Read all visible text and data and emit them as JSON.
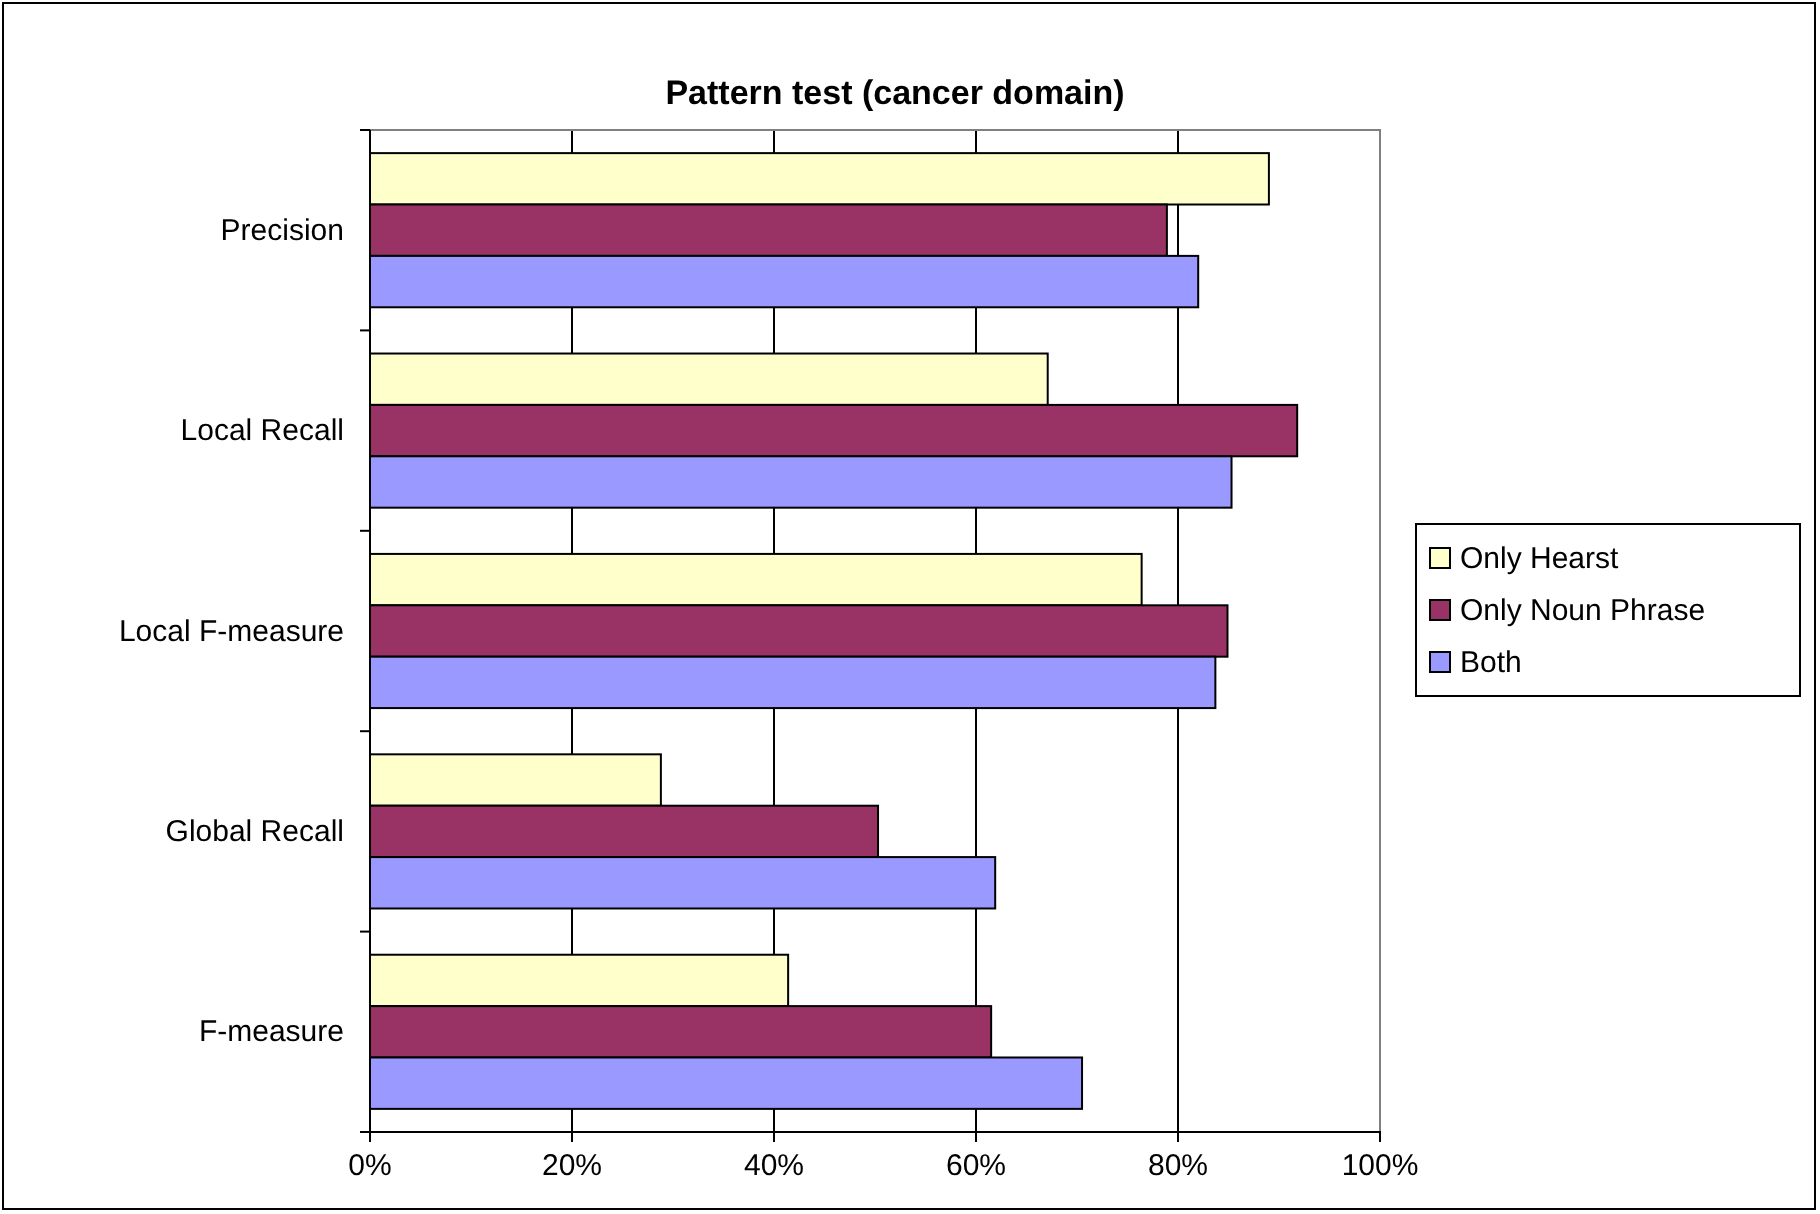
{
  "chart_data": {
    "type": "bar",
    "orientation": "horizontal",
    "title": "Pattern test (cancer domain)",
    "categories": [
      "Precision",
      "Local Recall",
      "Local F-measure",
      "Global Recall",
      "F-measure"
    ],
    "series": [
      {
        "name": "Only Hearst",
        "color": "#ffffcc",
        "values": [
          89.0,
          67.1,
          76.4,
          28.8,
          41.4
        ]
      },
      {
        "name": "Only Noun Phrase",
        "color": "#993366",
        "values": [
          78.9,
          91.8,
          84.9,
          50.3,
          61.5
        ]
      },
      {
        "name": "Both",
        "color": "#9999ff",
        "values": [
          82.0,
          85.3,
          83.7,
          61.9,
          70.5
        ]
      }
    ],
    "xlim": [
      0,
      100
    ],
    "xticks": [
      {
        "value": 0,
        "label": "0%"
      },
      {
        "value": 20,
        "label": "20%"
      },
      {
        "value": 40,
        "label": "40%"
      },
      {
        "value": 60,
        "label": "60%"
      },
      {
        "value": 80,
        "label": "80%"
      },
      {
        "value": 100,
        "label": "100%"
      }
    ],
    "grid": "x",
    "legend": "right"
  }
}
